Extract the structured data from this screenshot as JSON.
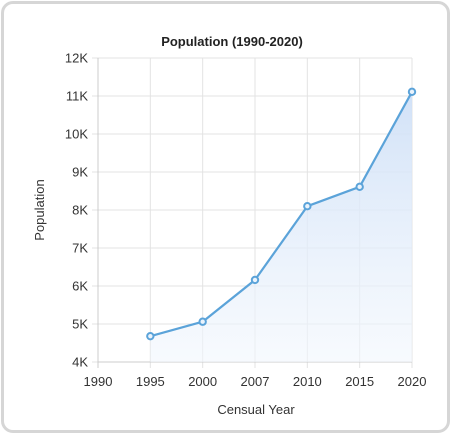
{
  "chart_data": {
    "type": "area",
    "title": "Population (1990-2020)",
    "xlabel": "Censual Year",
    "ylabel": "Population",
    "x_tick_labels": [
      "1990",
      "1995",
      "2000",
      "2007",
      "2010",
      "2015",
      "2020"
    ],
    "y_tick_labels": [
      "4K",
      "5K",
      "6K",
      "7K",
      "8K",
      "9K",
      "10K",
      "11K",
      "12K"
    ],
    "y_ticks": [
      4000,
      5000,
      6000,
      7000,
      8000,
      9000,
      10000,
      11000,
      12000
    ],
    "ylim": [
      4000,
      12000
    ],
    "grid": true,
    "legend": "none",
    "series": [
      {
        "x": [
          "1995",
          "2000",
          "2007",
          "2010",
          "2015",
          "2020"
        ],
        "values": [
          4680,
          5060,
          6160,
          8100,
          8610,
          11110
        ]
      }
    ],
    "colors": {
      "line": "#5ba3d9",
      "fill_top": "#cfe0f7",
      "fill_bottom": "#f2f7fd",
      "grid": "#e3e3e3",
      "axis": "#cccccc"
    }
  }
}
